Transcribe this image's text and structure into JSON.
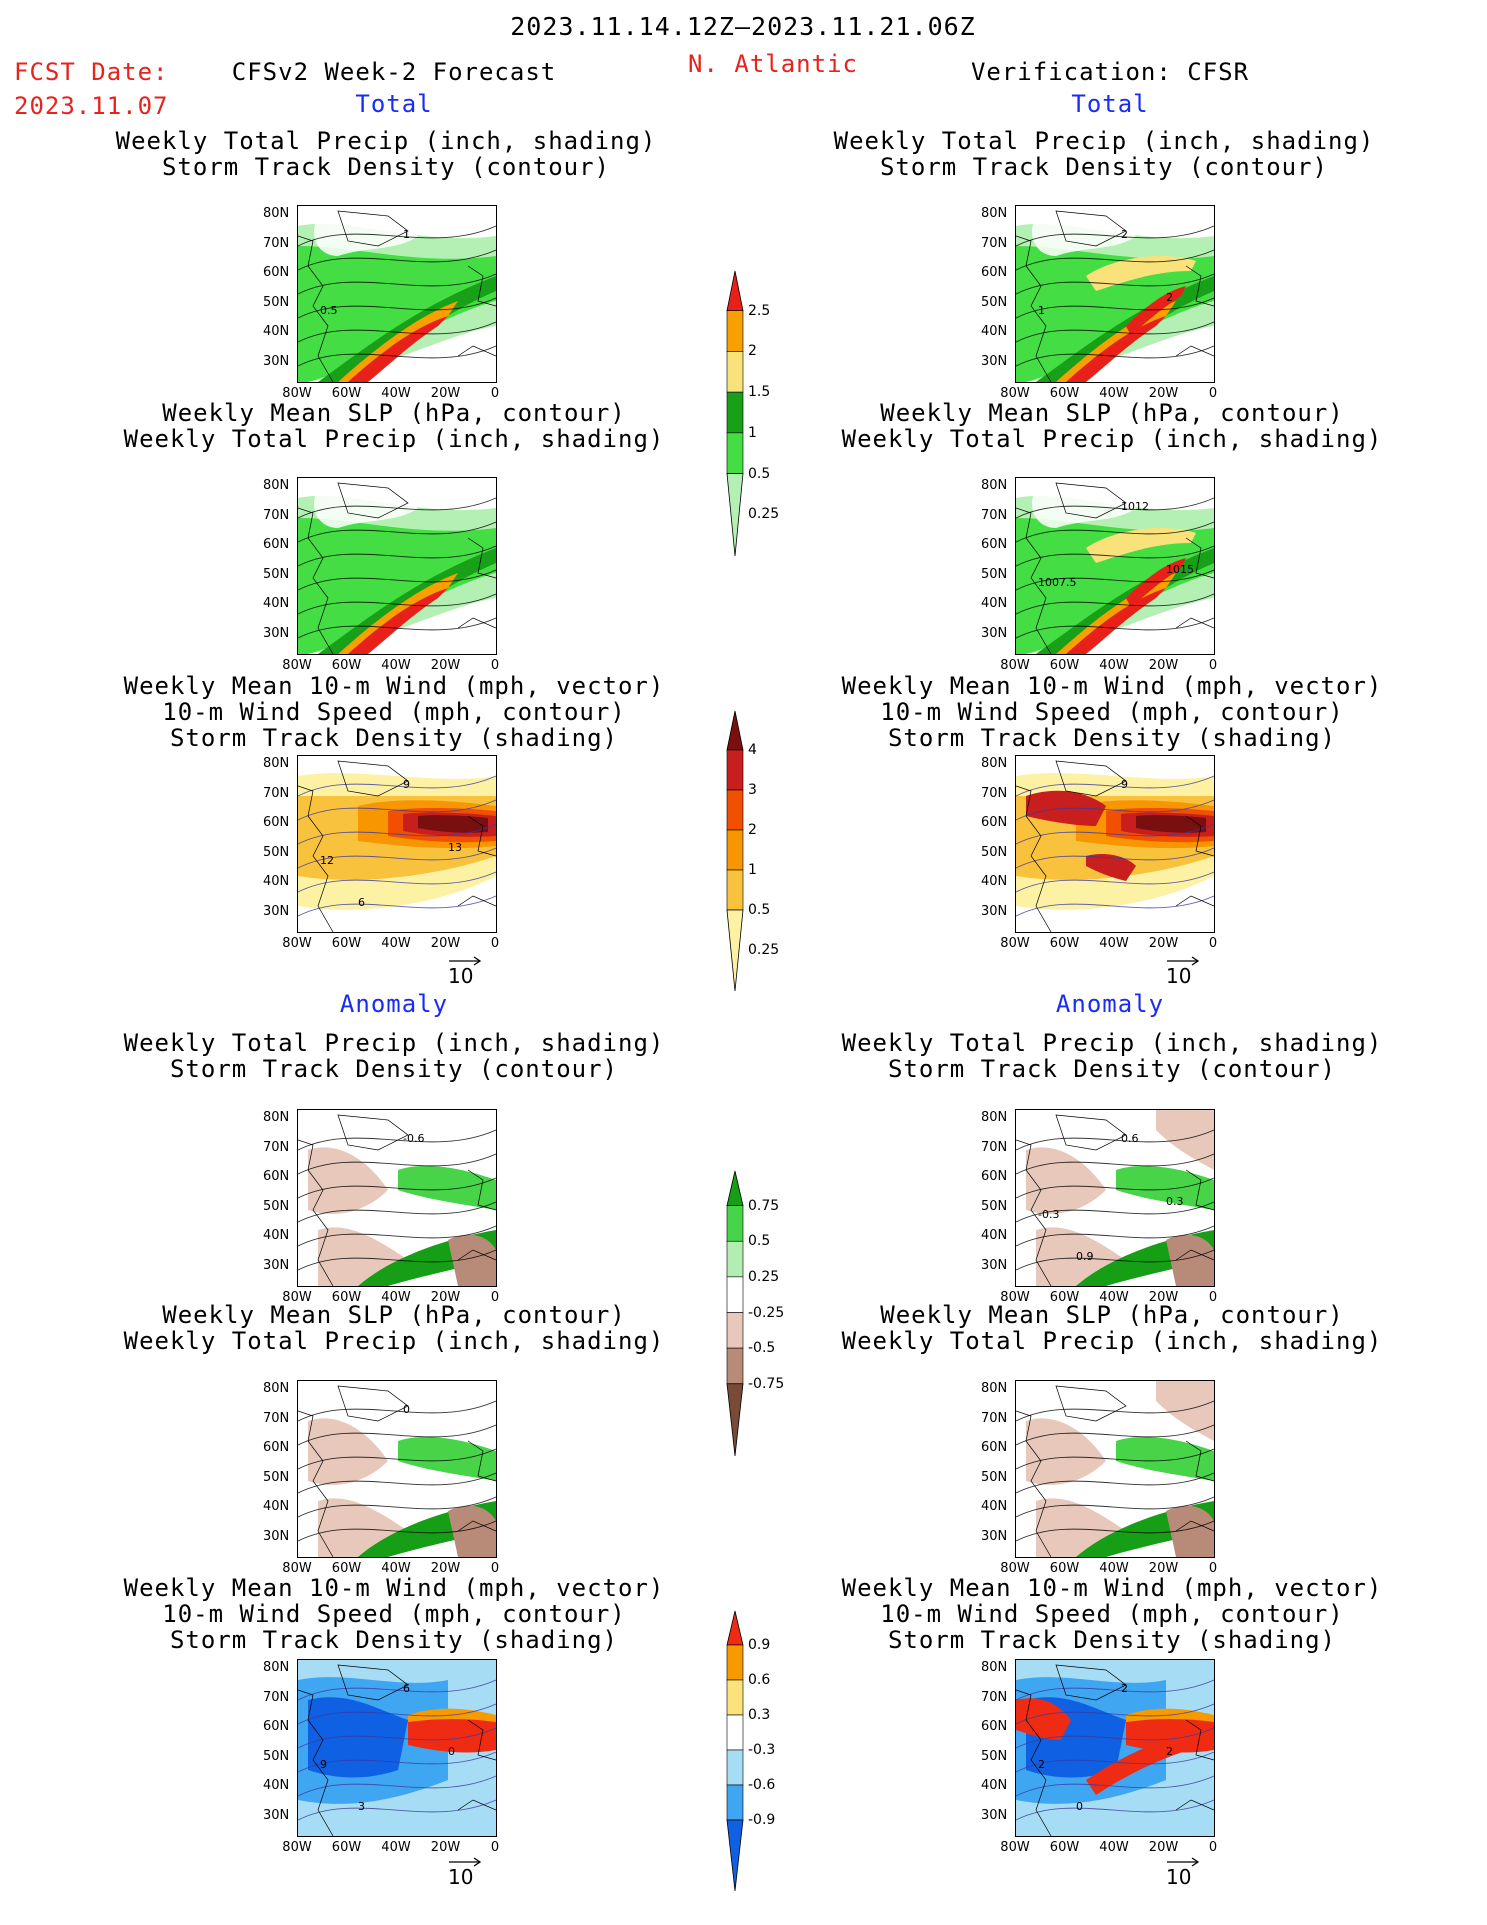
{
  "header": {
    "date_range": "2023.11.14.12Z–2023.11.21.06Z",
    "fcst_label": "FCST Date:",
    "fcst_date": "2023.11.07",
    "model_title": "CFSv2 Week-2 Forecast",
    "region": "N. Atlantic",
    "verification": "Verification: CFSR"
  },
  "sections": {
    "total": "Total",
    "anomaly": "Anomaly"
  },
  "panel_titles": {
    "precip_track": [
      "Weekly Total Precip (inch, shading)",
      "Storm Track Density (contour)"
    ],
    "slp_precip": [
      "Weekly Mean SLP (hPa, contour)",
      "Weekly Total Precip (inch, shading)"
    ],
    "wind_track": [
      "Weekly Mean 10-m Wind (mph, vector)",
      "10-m Wind Speed (mph, contour)",
      "Storm Track Density (shading)"
    ]
  },
  "axes": {
    "lat_ticks": [
      "80N",
      "70N",
      "60N",
      "50N",
      "40N",
      "30N"
    ],
    "lon_ticks": [
      "80W",
      "60W",
      "40W",
      "20W",
      "0"
    ]
  },
  "vector_ref": "10",
  "contour_labels": {
    "fc_precip_track": [
      "1",
      "0.5"
    ],
    "ob_precip_track": [
      "2",
      "1",
      "2"
    ],
    "ob_slp_precip": [
      "1012",
      "1007.5",
      "1015"
    ],
    "fc_wind": [
      "9",
      "12",
      "13",
      "6"
    ],
    "ob_wind": [
      "9"
    ],
    "fc_anom_precip": [
      "-0.6"
    ],
    "ob_anom_precip": [
      "0.6",
      "-0.3",
      "0.3",
      "0.9"
    ],
    "fc_anom_slp": [
      "0"
    ],
    "fc_anom_wind": [
      "6",
      "9",
      "0",
      "3"
    ],
    "ob_anom_wind": [
      "2",
      "2",
      "2",
      "0"
    ]
  },
  "colorbars": {
    "precip": {
      "labels": [
        "2.5",
        "2",
        "1.5",
        "1",
        "0.5",
        "0.25"
      ],
      "colors": [
        "#e8201a",
        "#f7a000",
        "#f9e27a",
        "#18a018",
        "#44dd44",
        "#b4f0b4"
      ]
    },
    "track": {
      "labels": [
        "4",
        "3",
        "2",
        "1",
        "0.5",
        "0.25"
      ],
      "colors": [
        "#7a0f0f",
        "#c81e1e",
        "#f05000",
        "#f79600",
        "#f9c23c",
        "#fdf2a4"
      ]
    },
    "precip_anom": {
      "labels": [
        "0.75",
        "0.5",
        "0.25",
        "-0.25",
        "-0.5",
        "-0.75"
      ],
      "colors": [
        "#169e16",
        "#48d448",
        "#b2eeb2",
        "#ffffff",
        "#e7c8bb",
        "#b88b78",
        "#7a4a38"
      ]
    },
    "track_anom": {
      "labels": [
        "0.9",
        "0.6",
        "0.3",
        "-0.3",
        "-0.6",
        "-0.9"
      ],
      "colors": [
        "#ef2b14",
        "#f69a00",
        "#fbe27a",
        "#ffffff",
        "#a7ddf4",
        "#3fa6f2",
        "#0f60e2"
      ]
    }
  }
}
